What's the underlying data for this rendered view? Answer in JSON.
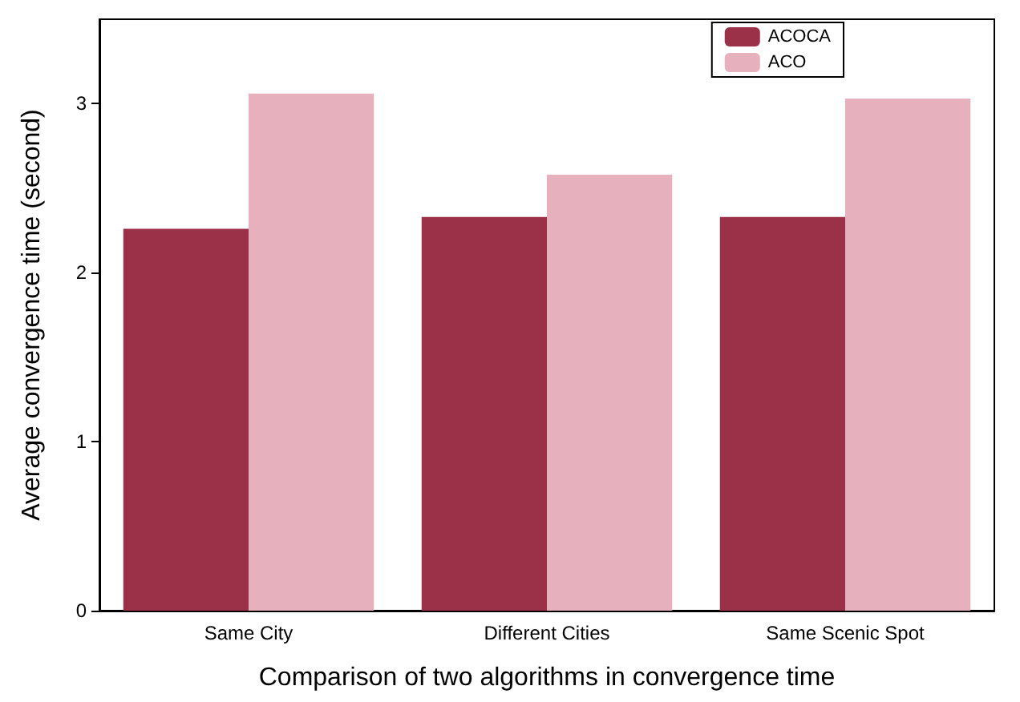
{
  "chart_data": {
    "type": "bar",
    "xlabel": "Comparison of two algorithms in convergence time",
    "ylabel": "Average convergence time (second)",
    "categories": [
      "Same City",
      "Different Cities",
      "Same Scenic Spot"
    ],
    "series": [
      {
        "name": "ACOCA",
        "color": "#9b3049",
        "values": [
          2.26,
          2.33,
          2.33
        ]
      },
      {
        "name": "ACO",
        "color": "#e6b0bd",
        "values": [
          3.06,
          2.58,
          3.03
        ]
      }
    ],
    "ylim": [
      0,
      3.5
    ],
    "yticks": [
      0,
      1,
      2,
      3
    ],
    "grid": false,
    "legend": "top right"
  }
}
